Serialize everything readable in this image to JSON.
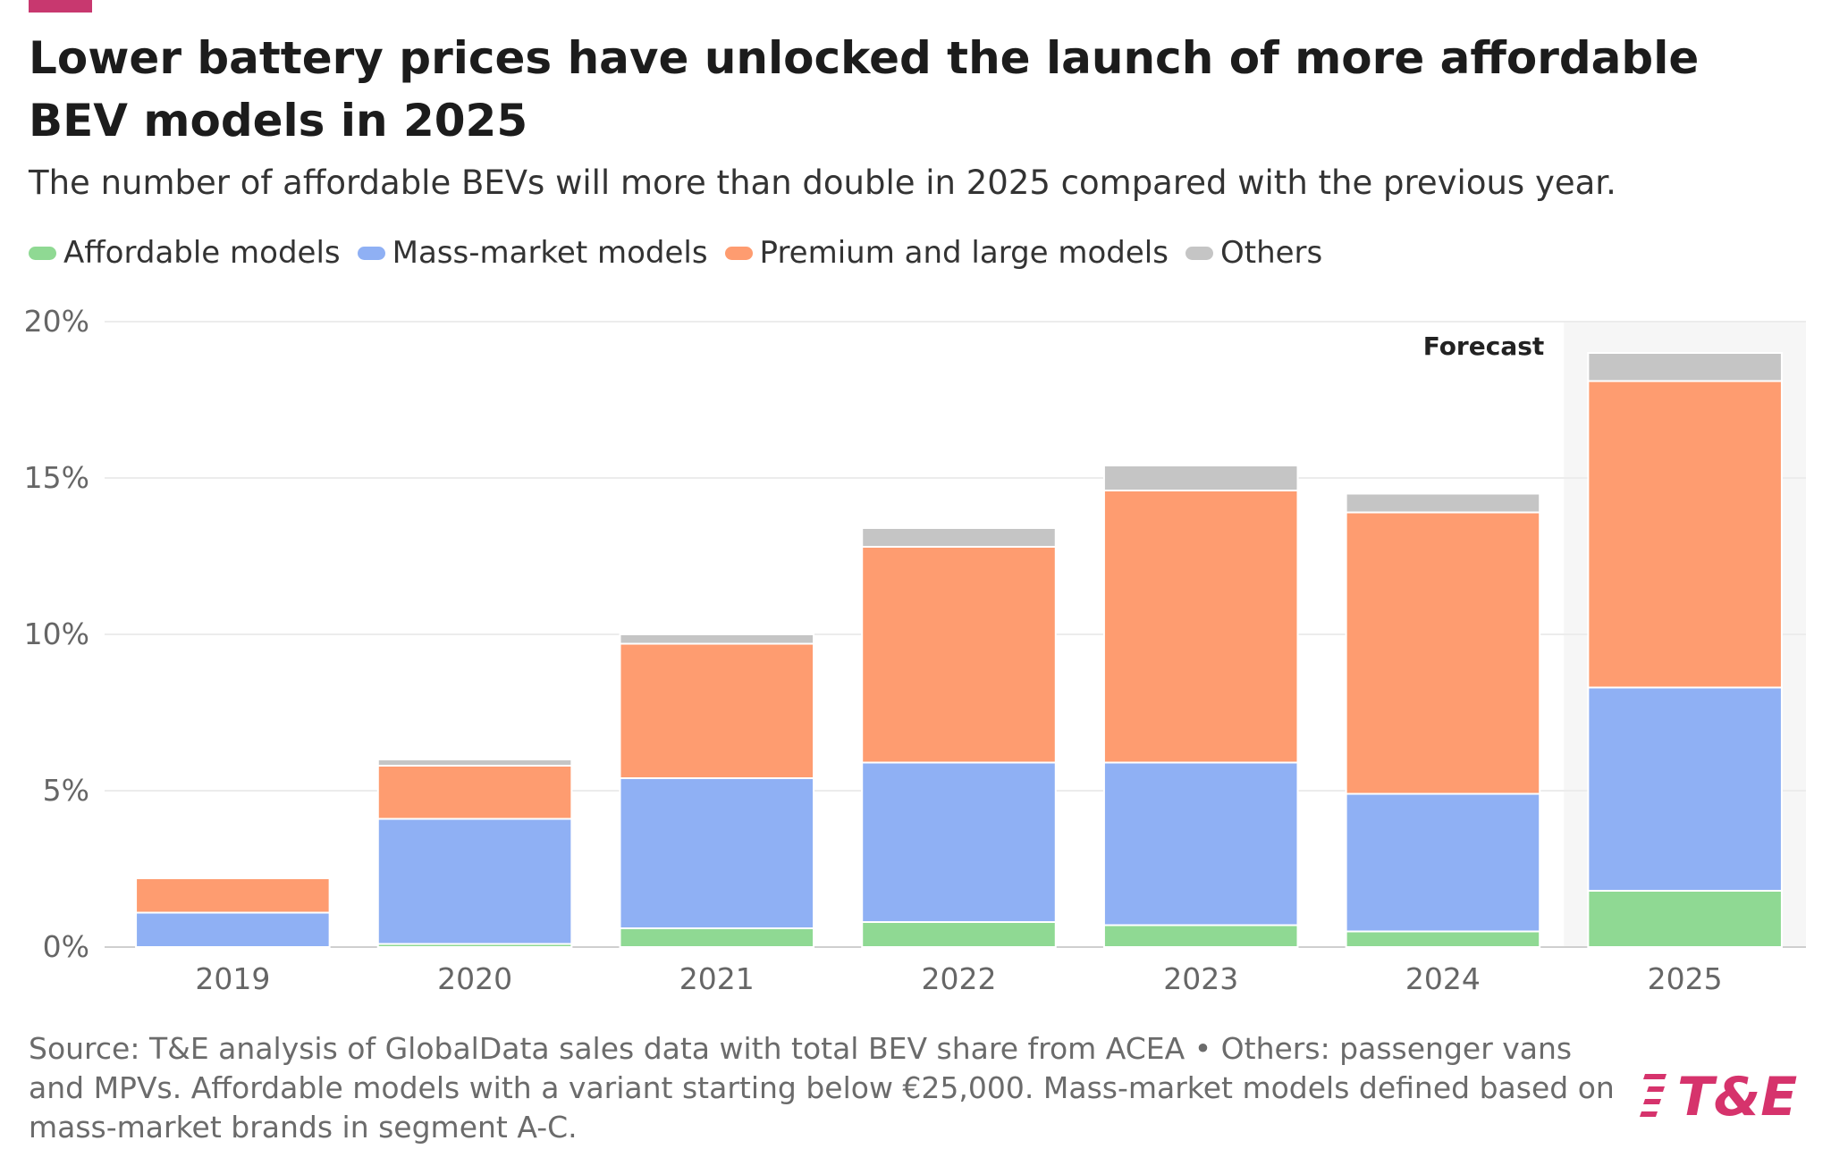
{
  "title": "Lower battery prices have unlocked the launch of more affordable BEV models in 2025",
  "subtitle": "The number of affordable BEVs will more than double in 2025 compared with the previous year.",
  "source": "Source: T&E analysis of GlobalData sales data with total BEV share from ACEA • Others: passenger vans and MPVs. Affordable models with a variant starting below €25,000. Mass-market models defined based on mass-market brands in segment A-C.",
  "logo_text": "T&E",
  "colors": {
    "accent": "#c8386f",
    "affordable": "#8fd993",
    "mass_market": "#8fb0f4",
    "premium": "#fe9c70",
    "others": "#c5c5c5",
    "logo": "#d6336c"
  },
  "chart_data": {
    "type": "bar",
    "stacked": true,
    "categories": [
      "2019",
      "2020",
      "2021",
      "2022",
      "2023",
      "2024",
      "2025"
    ],
    "series": [
      {
        "name": "Affordable models",
        "color": "#8fd993",
        "values": [
          0.0,
          0.1,
          0.6,
          0.8,
          0.7,
          0.5,
          1.8
        ]
      },
      {
        "name": "Mass-market models",
        "color": "#8fb0f4",
        "values": [
          1.1,
          4.0,
          4.8,
          5.1,
          5.2,
          4.4,
          6.5
        ]
      },
      {
        "name": "Premium and large models",
        "color": "#fe9c70",
        "values": [
          1.1,
          1.7,
          4.3,
          6.9,
          8.7,
          9.0,
          9.8
        ]
      },
      {
        "name": "Others",
        "color": "#c5c5c5",
        "values": [
          0.0,
          0.2,
          0.3,
          0.6,
          0.8,
          0.6,
          0.9
        ]
      }
    ],
    "yticks": [
      "0%",
      "5%",
      "10%",
      "15%",
      "20%"
    ],
    "ylim": [
      0,
      20
    ],
    "annotation": "Forecast",
    "forecast_category": "2025",
    "legend_position": "top-left",
    "grid": true
  }
}
